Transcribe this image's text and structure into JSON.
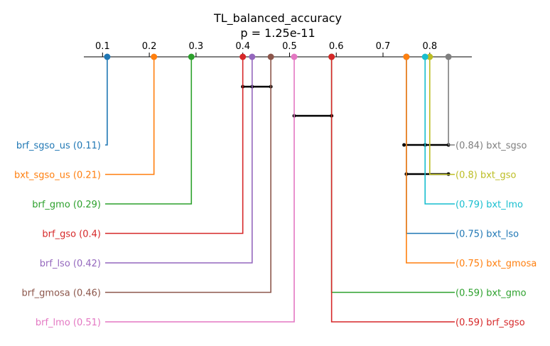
{
  "chart_data": {
    "type": "critical-difference",
    "title": "TL_balanced_accuracy",
    "subtitle": "p = 1.25e-11",
    "axis": {
      "min": 0.06,
      "max": 0.89,
      "ticks": [
        "0.1",
        "0.2",
        "0.3",
        "0.4",
        "0.5",
        "0.6",
        "0.7",
        "0.8"
      ]
    },
    "left_methods": [
      {
        "name": "brf_sgso_us",
        "value": 0.11,
        "label": "brf_sgso_us (0.11)",
        "color": "#1f77b4"
      },
      {
        "name": "bxt_sgso_us",
        "value": 0.21,
        "label": "bxt_sgso_us (0.21)",
        "color": "#ff7f0e"
      },
      {
        "name": "brf_gmo",
        "value": 0.29,
        "label": "brf_gmo (0.29)",
        "color": "#2ca02c"
      },
      {
        "name": "brf_gso",
        "value": 0.4,
        "label": "brf_gso (0.4)",
        "color": "#d62728"
      },
      {
        "name": "brf_lso",
        "value": 0.42,
        "label": "brf_lso (0.42)",
        "color": "#9467bd"
      },
      {
        "name": "brf_gmosa",
        "value": 0.46,
        "label": "brf_gmosa (0.46)",
        "color": "#8c564b"
      },
      {
        "name": "brf_lmo",
        "value": 0.51,
        "label": "brf_lmo (0.51)",
        "color": "#e377c2"
      }
    ],
    "right_methods": [
      {
        "name": "bxt_sgso",
        "value": 0.84,
        "label": "(0.84) bxt_sgso",
        "color": "#7f7f7f"
      },
      {
        "name": "bxt_gso",
        "value": 0.8,
        "label": "(0.8) bxt_gso",
        "color": "#bcbd22"
      },
      {
        "name": "bxt_lmo",
        "value": 0.79,
        "label": "(0.79) bxt_lmo",
        "color": "#17becf"
      },
      {
        "name": "bxt_lso",
        "value": 0.75,
        "label": "(0.75) bxt_lso",
        "color": "#1f77b4"
      },
      {
        "name": "bxt_gmosa",
        "value": 0.75,
        "label": "(0.75) bxt_gmosa",
        "color": "#ff7f0e"
      },
      {
        "name": "bxt_gmo",
        "value": 0.59,
        "label": "(0.59) bxt_gmo",
        "color": "#2ca02c"
      },
      {
        "name": "brf_sgso",
        "value": 0.59,
        "label": "(0.59) brf_sgso",
        "color": "#d62728"
      }
    ],
    "groups": [
      {
        "from": 0.4,
        "to": 0.46,
        "points": [
          0.4,
          0.42,
          0.46
        ]
      },
      {
        "from": 0.51,
        "to": 0.59,
        "points": [
          0.51,
          0.59
        ]
      },
      {
        "from": 0.745,
        "to": 0.84,
        "points": [
          0.745,
          0.79,
          0.84
        ]
      },
      {
        "from": 0.75,
        "to": 0.84,
        "points": [
          0.75,
          0.84
        ]
      }
    ]
  }
}
